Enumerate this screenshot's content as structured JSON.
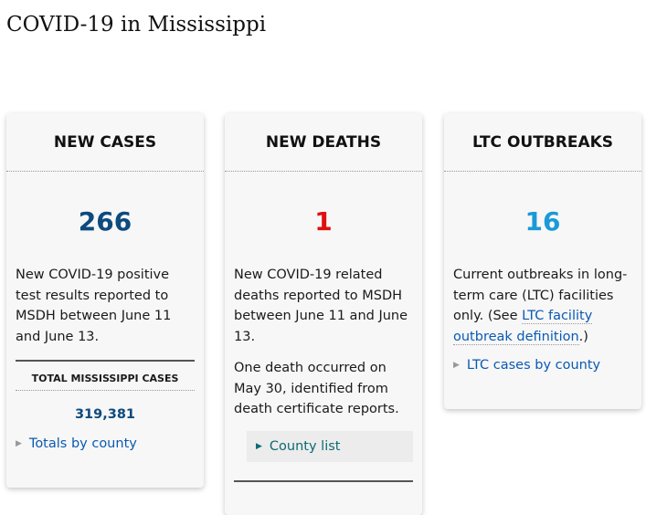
{
  "page_title": "COVID-19 in Mississippi",
  "cards": [
    {
      "title": "NEW CASES",
      "value": "266",
      "value_color": "#0d4a7e",
      "description": "New COVID-19 positive test results reported to MSDH between June 11 and June 13.",
      "total_label": "TOTAL MISSISSIPPI CASES",
      "total_value": "319,381",
      "link": "Totals by county"
    },
    {
      "title": "NEW DEATHS",
      "value": "1",
      "value_color": "#e01010",
      "description": "New COVID-19 related deaths reported to MSDH between June 11 and June 13.",
      "note": "One death occurred on May 30, identified from death certificate reports.",
      "link": "County list"
    },
    {
      "title": "LTC OUTBREAKS",
      "value": "16",
      "value_color": "#1a9ad6",
      "description_pre": "Current outbreaks in long-term care (LTC) facilities only. (See ",
      "description_link": "LTC facility outbreak definition",
      "description_post": ".)",
      "link": "LTC cases by county"
    }
  ]
}
